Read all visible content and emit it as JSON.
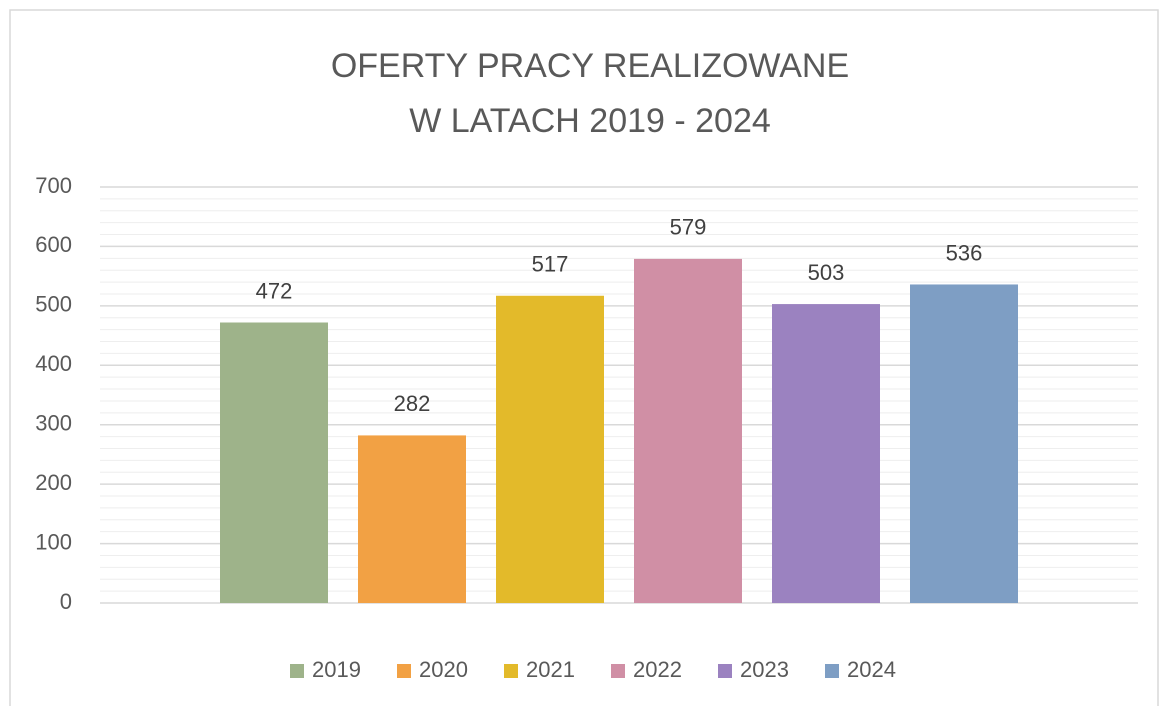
{
  "chart_data": {
    "type": "bar",
    "title": [
      "OFERTY PRACY REALIZOWANE",
      "W LATACH 2019 - 2024"
    ],
    "series": [
      {
        "name": "2019",
        "color": "#9eb38a",
        "values": [
          472
        ]
      },
      {
        "name": "2020",
        "color": "#f2a144",
        "values": [
          282
        ]
      },
      {
        "name": "2021",
        "color": "#e3ba2a",
        "values": [
          517
        ]
      },
      {
        "name": "2022",
        "color": "#d08fa5",
        "values": [
          579
        ]
      },
      {
        "name": "2023",
        "color": "#9b82c0",
        "values": [
          503
        ]
      },
      {
        "name": "2024",
        "color": "#7e9ec4",
        "values": [
          536
        ]
      }
    ],
    "ylim": [
      0,
      700
    ],
    "yticks": [
      0,
      100,
      200,
      300,
      400,
      500,
      600,
      700
    ],
    "yminorticks": [
      20,
      40,
      60,
      80,
      120,
      140,
      160,
      180,
      220,
      240,
      260,
      280,
      320,
      340,
      360,
      380,
      420,
      440,
      460,
      480,
      520,
      540,
      560,
      580,
      620,
      640,
      660,
      680
    ],
    "grid": true,
    "legend": "bottom"
  }
}
